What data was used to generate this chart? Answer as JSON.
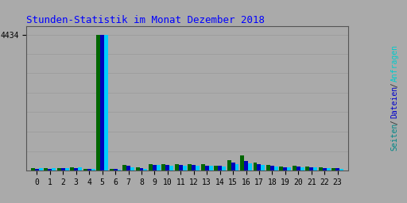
{
  "title": "Stunden-Statistik im Monat Dezember 2018",
  "title_color": "#0000ff",
  "background_color": "#aaaaaa",
  "plot_bg_color": "#aaaaaa",
  "hours": [
    0,
    1,
    2,
    3,
    4,
    5,
    6,
    7,
    8,
    9,
    10,
    11,
    12,
    13,
    14,
    15,
    16,
    17,
    18,
    19,
    20,
    21,
    22,
    23
  ],
  "seiten": [
    80,
    75,
    90,
    110,
    65,
    4434,
    55,
    175,
    100,
    210,
    220,
    215,
    205,
    200,
    165,
    330,
    500,
    260,
    170,
    130,
    145,
    125,
    100,
    90
  ],
  "dateien": [
    65,
    60,
    75,
    90,
    55,
    4430,
    45,
    145,
    85,
    185,
    190,
    180,
    170,
    165,
    145,
    255,
    300,
    210,
    145,
    110,
    125,
    110,
    85,
    75
  ],
  "anfragen": [
    72,
    68,
    82,
    100,
    60,
    4432,
    38,
    115,
    65,
    175,
    165,
    155,
    155,
    150,
    125,
    215,
    230,
    175,
    135,
    100,
    110,
    95,
    75,
    65
  ],
  "color_seiten": "#006600",
  "color_dateien": "#0000bb",
  "color_anfragen": "#00ccff",
  "bar_width": 0.3,
  "ylim_max": 4700,
  "ytick_label": "4434",
  "grid_color": "#999999",
  "grid_values": [
    0,
    634,
    1268,
    1902,
    2536,
    3170,
    3804,
    4434
  ],
  "label_seiten_color": "#008888",
  "label_dateien_color": "#0000cc",
  "label_anfragen_color": "#00cccc"
}
